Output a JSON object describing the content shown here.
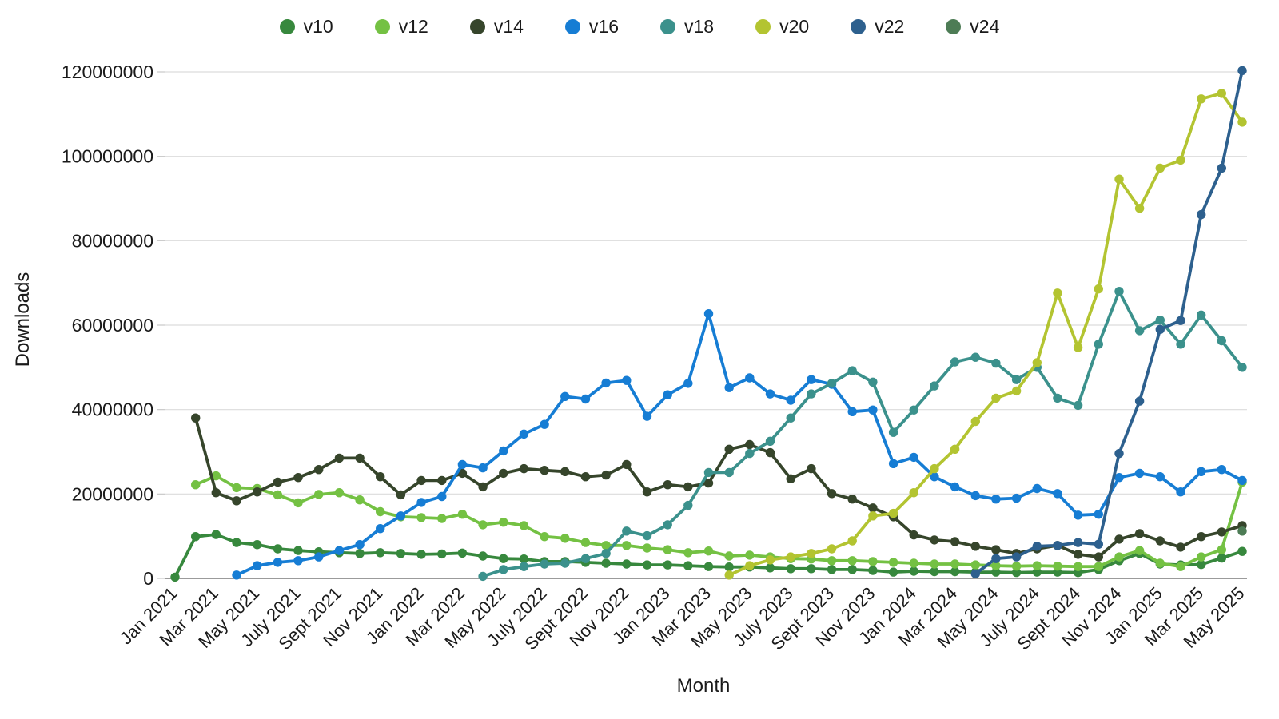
{
  "chart_data": {
    "type": "line",
    "title": "",
    "xlabel": "Month",
    "ylabel": "Downloads",
    "legend_position": "top",
    "grid": "horizontal",
    "values_unit": "millions of downloads",
    "ylim": [
      0,
      120000000
    ],
    "y_ticks": [
      0,
      20000000,
      40000000,
      60000000,
      80000000,
      100000000,
      120000000
    ],
    "x_tick_labels": [
      "Jan 2021",
      "Mar 2021",
      "May 2021",
      "July 2021",
      "Sept 2021",
      "Nov 2021",
      "Jan 2022",
      "Mar 2022",
      "May 2022",
      "July 2022",
      "Sept 2022",
      "Nov 2022",
      "Jan 2023",
      "Mar 2023",
      "May 2023",
      "July 2023",
      "Sept 2023",
      "Nov 2023",
      "Jan 2024",
      "Mar 2024",
      "May 2024",
      "July 2024",
      "Sept 2024",
      "Nov 2024",
      "Jan 2025",
      "Mar 2025",
      "May 2025"
    ],
    "months": [
      "Jan 2021",
      "Feb 2021",
      "Mar 2021",
      "Apr 2021",
      "May 2021",
      "June 2021",
      "July 2021",
      "Aug 2021",
      "Sept 2021",
      "Oct 2021",
      "Nov 2021",
      "Dec 2021",
      "Jan 2022",
      "Feb 2022",
      "Mar 2022",
      "Apr 2022",
      "May 2022",
      "June 2022",
      "July 2022",
      "Aug 2022",
      "Sept 2022",
      "Oct 2022",
      "Nov 2022",
      "Dec 2022",
      "Jan 2023",
      "Feb 2023",
      "Mar 2023",
      "Apr 2023",
      "May 2023",
      "June 2023",
      "July 2023",
      "Aug 2023",
      "Sept 2023",
      "Oct 2023",
      "Nov 2023",
      "Dec 2023",
      "Jan 2024",
      "Feb 2024",
      "Mar 2024",
      "Apr 2024",
      "May 2024",
      "June 2024",
      "July 2024",
      "Aug 2024",
      "Sept 2024",
      "Oct 2024",
      "Nov 2024",
      "Dec 2024",
      "Jan 2025",
      "Feb 2025",
      "Mar 2025",
      "Apr 2025",
      "May 2025"
    ],
    "series": [
      {
        "name": "v10",
        "color": "#37883d",
        "values_millions": [
          0.3,
          9.9,
          10.4,
          8.5,
          8.0,
          7.0,
          6.6,
          6.3,
          6.1,
          5.9,
          6.1,
          5.9,
          5.7,
          5.8,
          6.0,
          5.3,
          4.7,
          4.6,
          4.0,
          4.0,
          3.8,
          3.6,
          3.4,
          3.2,
          3.2,
          3.0,
          2.8,
          2.7,
          2.7,
          2.5,
          2.3,
          2.3,
          2.1,
          2.1,
          1.9,
          1.5,
          1.7,
          1.6,
          1.6,
          1.5,
          1.5,
          1.4,
          1.5,
          1.5,
          1.4,
          2.1,
          4.2,
          5.9,
          3.4,
          3.2,
          3.3,
          4.8,
          6.4
        ]
      },
      {
        "name": "v12",
        "color": "#74c143",
        "values_millions": [
          null,
          22.2,
          24.3,
          21.5,
          21.3,
          19.8,
          17.9,
          19.9,
          20.3,
          18.6,
          15.8,
          14.6,
          14.4,
          14.2,
          15.2,
          12.7,
          13.3,
          12.5,
          9.9,
          9.5,
          8.5,
          7.8,
          7.8,
          7.2,
          6.8,
          6.1,
          6.5,
          5.3,
          5.5,
          5.1,
          4.7,
          4.6,
          4.2,
          4.2,
          4.0,
          3.8,
          3.6,
          3.4,
          3.4,
          3.2,
          3.0,
          2.9,
          3.0,
          2.9,
          2.8,
          2.8,
          5.1,
          6.6,
          3.6,
          2.8,
          5.1,
          6.8,
          22.8
        ]
      },
      {
        "name": "v14",
        "color": "#36452b",
        "values_millions": [
          null,
          38.0,
          20.3,
          18.4,
          20.5,
          22.8,
          23.9,
          25.8,
          28.5,
          28.5,
          24.1,
          19.8,
          23.2,
          23.2,
          24.9,
          21.7,
          24.9,
          26.0,
          25.6,
          25.3,
          24.1,
          24.5,
          27.0,
          20.5,
          22.2,
          21.7,
          22.6,
          30.6,
          31.7,
          29.8,
          23.6,
          26.0,
          20.1,
          18.8,
          16.7,
          14.6,
          10.3,
          9.1,
          8.7,
          7.6,
          6.8,
          5.9,
          7.0,
          7.8,
          5.7,
          5.1,
          9.3,
          10.6,
          8.9,
          7.4,
          9.9,
          11.0,
          12.5
        ]
      },
      {
        "name": "v16",
        "color": "#167dd4",
        "values_millions": [
          null,
          null,
          null,
          0.8,
          3.0,
          3.8,
          4.2,
          5.1,
          6.6,
          8.0,
          11.8,
          14.8,
          18.0,
          19.4,
          27.0,
          26.2,
          30.2,
          34.2,
          36.5,
          43.1,
          42.5,
          46.3,
          46.9,
          38.4,
          43.5,
          46.2,
          62.7,
          45.2,
          47.5,
          43.7,
          42.2,
          47.1,
          46.0,
          39.5,
          39.9,
          27.2,
          28.7,
          24.1,
          21.7,
          19.6,
          18.8,
          19.0,
          21.3,
          20.1,
          15.0,
          15.2,
          23.9,
          24.9,
          24.1,
          20.5,
          25.3,
          25.8,
          23.2
        ]
      },
      {
        "name": "v18",
        "color": "#3b918c",
        "values_millions": [
          null,
          null,
          null,
          null,
          null,
          null,
          null,
          null,
          null,
          null,
          null,
          null,
          null,
          null,
          null,
          0.5,
          2.1,
          2.8,
          3.4,
          3.6,
          4.7,
          5.9,
          11.2,
          10.1,
          12.7,
          17.3,
          25.1,
          25.1,
          29.6,
          32.5,
          38.0,
          43.7,
          46.2,
          49.2,
          46.5,
          34.6,
          39.9,
          45.6,
          51.3,
          52.4,
          51.0,
          47.1,
          50.0,
          42.7,
          41.0,
          55.5,
          68.0,
          58.7,
          61.2,
          55.5,
          62.4,
          56.3,
          50.0
        ]
      },
      {
        "name": "v20",
        "color": "#b3c431",
        "values_millions": [
          null,
          null,
          null,
          null,
          null,
          null,
          null,
          null,
          null,
          null,
          null,
          null,
          null,
          null,
          null,
          null,
          null,
          null,
          null,
          null,
          null,
          null,
          null,
          null,
          null,
          null,
          null,
          0.8,
          3.0,
          4.4,
          5.1,
          5.9,
          7.0,
          8.9,
          14.8,
          15.4,
          20.3,
          26.0,
          30.6,
          37.2,
          42.7,
          44.4,
          51.1,
          67.6,
          54.7,
          68.6,
          94.6,
          87.7,
          97.2,
          99.1,
          113.6,
          114.9,
          108.1
        ]
      },
      {
        "name": "v22",
        "color": "#2d608e",
        "values_millions": [
          null,
          null,
          null,
          null,
          null,
          null,
          null,
          null,
          null,
          null,
          null,
          null,
          null,
          null,
          null,
          null,
          null,
          null,
          null,
          null,
          null,
          null,
          null,
          null,
          null,
          null,
          null,
          null,
          null,
          null,
          null,
          null,
          null,
          null,
          null,
          null,
          null,
          null,
          null,
          1.1,
          4.7,
          5.1,
          7.6,
          7.8,
          8.5,
          8.1,
          29.6,
          42.0,
          59.0,
          61.1,
          86.2,
          97.2,
          120.3
        ]
      },
      {
        "name": "v24",
        "color": "#4d7c55",
        "values_millions": [
          null,
          null,
          null,
          null,
          null,
          null,
          null,
          null,
          null,
          null,
          null,
          null,
          null,
          null,
          null,
          null,
          null,
          null,
          null,
          null,
          null,
          null,
          null,
          null,
          null,
          null,
          null,
          null,
          null,
          null,
          null,
          null,
          null,
          null,
          null,
          null,
          null,
          null,
          null,
          null,
          null,
          null,
          null,
          null,
          null,
          null,
          null,
          null,
          null,
          null,
          null,
          null,
          11.2
        ]
      }
    ],
    "colors": {
      "grid": "#dcdcdc",
      "axis": "#7a7a7a",
      "tick": "#c8c8c8",
      "text": "#1a1a1a"
    }
  }
}
